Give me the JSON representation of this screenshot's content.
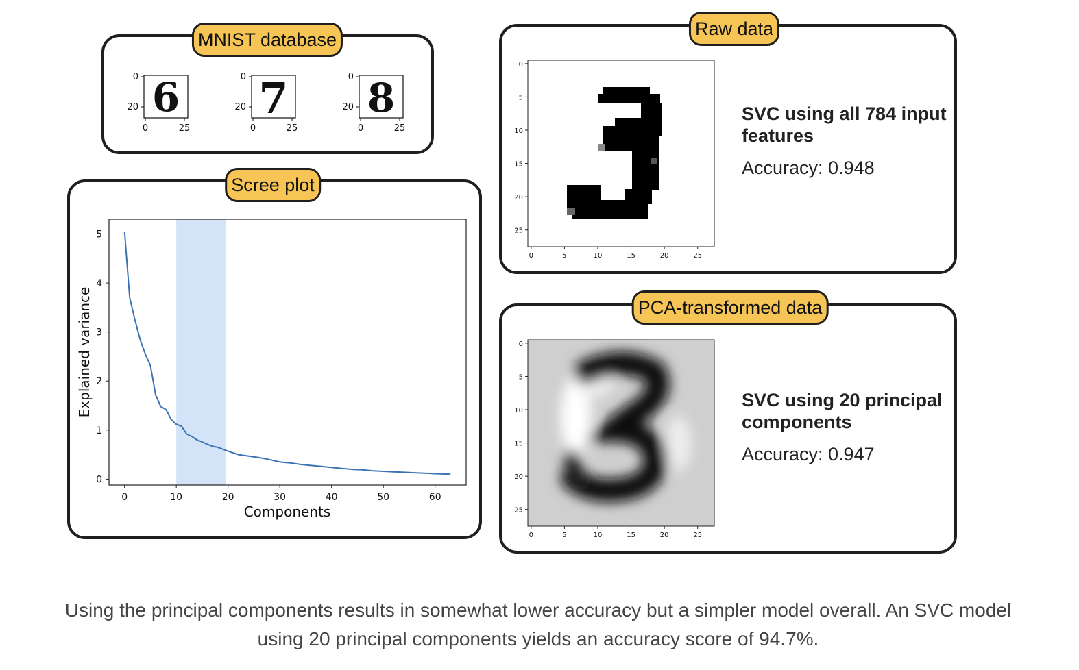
{
  "mnist": {
    "badge": "MNIST database",
    "digits": [
      {
        "glyph": "6",
        "y_ticks": [
          "0",
          "20"
        ],
        "x_ticks": [
          "0",
          "25"
        ]
      },
      {
        "glyph": "7",
        "y_ticks": [
          "0",
          "20"
        ],
        "x_ticks": [
          "0",
          "25"
        ]
      },
      {
        "glyph": "8",
        "y_ticks": [
          "0",
          "20"
        ],
        "x_ticks": [
          "0",
          "25"
        ]
      }
    ]
  },
  "scree": {
    "badge": "Scree plot",
    "chart_data": {
      "type": "line",
      "xlabel": "Components",
      "ylabel": "Explained variance",
      "xlim": [
        -3,
        66
      ],
      "ylim": [
        -0.12,
        5.3
      ],
      "x_ticks": [
        0,
        10,
        20,
        30,
        40,
        50,
        60
      ],
      "y_ticks": [
        0,
        1,
        2,
        3,
        4,
        5
      ],
      "highlight_range": [
        10,
        19.5
      ],
      "highlight_color": "#d3e3f8",
      "line_color": "#3b73b2",
      "series": [
        {
          "x": [
            0,
            1,
            2,
            3,
            4,
            5,
            6,
            7,
            8,
            9,
            10,
            11,
            12,
            13,
            14,
            15,
            16,
            17,
            18,
            19,
            20,
            22,
            24,
            26,
            28,
            30,
            32,
            34,
            36,
            38,
            40,
            42,
            44,
            46,
            48,
            50,
            52,
            54,
            56,
            58,
            60,
            63
          ],
          "values": [
            5.05,
            3.7,
            3.25,
            2.85,
            2.55,
            2.32,
            1.72,
            1.48,
            1.42,
            1.22,
            1.12,
            1.08,
            0.92,
            0.87,
            0.8,
            0.76,
            0.71,
            0.67,
            0.65,
            0.61,
            0.57,
            0.5,
            0.47,
            0.44,
            0.4,
            0.35,
            0.33,
            0.3,
            0.28,
            0.26,
            0.24,
            0.22,
            0.2,
            0.19,
            0.17,
            0.16,
            0.15,
            0.14,
            0.13,
            0.12,
            0.11,
            0.1
          ]
        }
      ]
    }
  },
  "raw": {
    "badge": "Raw data",
    "svc_title": "SVC using all 784 input features",
    "accuracy": "Accuracy: 0.948",
    "x_ticks": [
      "0",
      "5",
      "10",
      "15",
      "20",
      "25"
    ],
    "y_ticks": [
      "0",
      "5",
      "10",
      "15",
      "20",
      "25"
    ]
  },
  "pca": {
    "badge": "PCA-transformed data",
    "svc_title": "SVC using 20 principal components",
    "accuracy": "Accuracy: 0.947",
    "x_ticks": [
      "0",
      "5",
      "10",
      "15",
      "20",
      "25"
    ],
    "y_ticks": [
      "0",
      "5",
      "10",
      "15",
      "20",
      "25"
    ]
  },
  "caption": "Using the principal components results in somewhat lower accuracy but a simpler model overall. An SVC model using 20 principal components yields an accuracy score of 94.7%."
}
